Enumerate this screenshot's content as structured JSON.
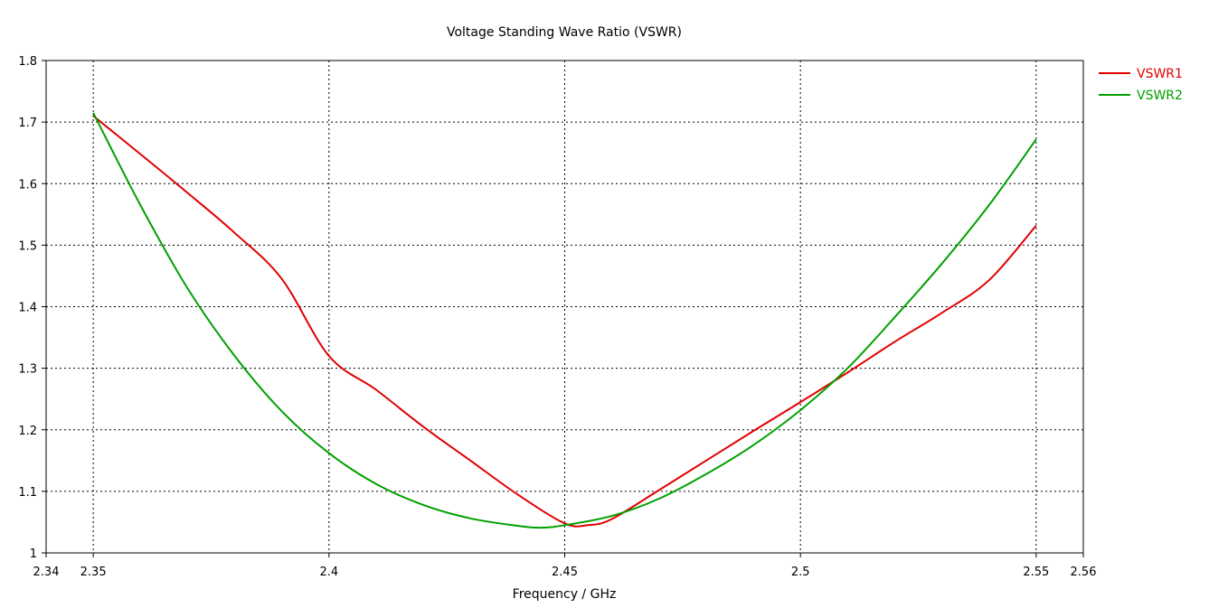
{
  "chart_data": {
    "type": "line",
    "title": "Voltage Standing Wave Ratio (VSWR)",
    "xlabel": "Frequency / GHz",
    "ylabel": "",
    "xlim": [
      2.34,
      2.56
    ],
    "ylim": [
      1.0,
      1.8
    ],
    "xticks": [
      2.34,
      2.35,
      2.4,
      2.45,
      2.5,
      2.55,
      2.56
    ],
    "xtick_labels": [
      "2.34",
      "2.35",
      "2.4",
      "2.45",
      "2.5",
      "2.55",
      "2.56"
    ],
    "yticks": [
      1.0,
      1.1,
      1.2,
      1.3,
      1.4,
      1.5,
      1.6,
      1.7,
      1.8
    ],
    "ytick_labels": [
      "1",
      "1.1",
      "1.2",
      "1.3",
      "1.4",
      "1.5",
      "1.6",
      "1.7",
      "1.8"
    ],
    "grid": true,
    "legend_position": "right",
    "series": [
      {
        "name": "VSWR1",
        "color": "#e00000",
        "x": [
          2.35,
          2.36,
          2.37,
          2.38,
          2.39,
          2.4,
          2.41,
          2.42,
          2.43,
          2.44,
          2.45,
          2.455,
          2.46,
          2.47,
          2.48,
          2.49,
          2.5,
          2.51,
          2.52,
          2.53,
          2.54,
          2.55
        ],
        "values": [
          1.71,
          1.648,
          1.585,
          1.52,
          1.445,
          1.32,
          1.265,
          1.205,
          1.15,
          1.095,
          1.048,
          1.045,
          1.055,
          1.102,
          1.15,
          1.198,
          1.245,
          1.293,
          1.343,
          1.39,
          1.443,
          1.532
        ]
      },
      {
        "name": "VSWR2",
        "color": "#00a000",
        "x": [
          2.35,
          2.36,
          2.37,
          2.38,
          2.39,
          2.4,
          2.41,
          2.42,
          2.43,
          2.44,
          2.445,
          2.45,
          2.46,
          2.47,
          2.48,
          2.49,
          2.5,
          2.51,
          2.52,
          2.53,
          2.54,
          2.55
        ],
        "values": [
          1.715,
          1.565,
          1.43,
          1.32,
          1.23,
          1.162,
          1.112,
          1.078,
          1.056,
          1.044,
          1.041,
          1.045,
          1.06,
          1.088,
          1.128,
          1.175,
          1.232,
          1.3,
          1.383,
          1.47,
          1.565,
          1.672
        ]
      }
    ]
  }
}
